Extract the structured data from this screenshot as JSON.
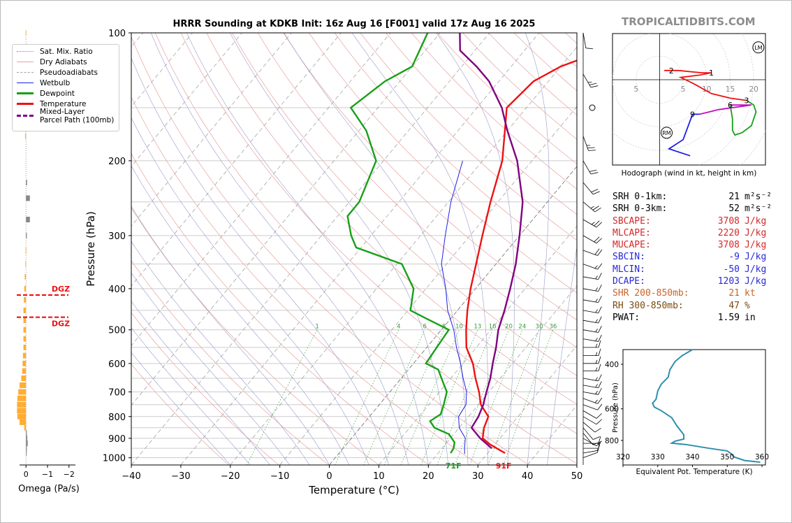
{
  "title": "HRRR Sounding at KDKB Init: 16z Aug 16 [F001] valid 17z Aug 16 2025",
  "brand": "TROPICALTIDBITS.COM",
  "chart_data": [
    {
      "type": "line",
      "name": "skew-t",
      "xlabel": "Temperature (°C)",
      "ylabel": "Pressure (hPa)",
      "xlim": [
        -40,
        50
      ],
      "ylim": [
        1040,
        100
      ],
      "y_scale": "log",
      "x_ticks": [
        -40,
        -30,
        -20,
        -10,
        0,
        10,
        20,
        30,
        40,
        50
      ],
      "y_ticks": [
        100,
        200,
        300,
        400,
        500,
        600,
        700,
        800,
        900,
        1000
      ],
      "grid": true,
      "legend": {
        "position": "left",
        "items": [
          {
            "label": "Sat. Mix. Ratio",
            "color": "#888888",
            "style": "dotted"
          },
          {
            "label": "Dry Adiabats",
            "color": "#e8a0a0",
            "style": "solid"
          },
          {
            "label": "Pseudoadiabats",
            "color": "#a0a0a0",
            "style": "dashed"
          },
          {
            "label": "Wetbulb",
            "color": "#1f1fe6",
            "style": "solid"
          },
          {
            "label": "Dewpoint",
            "color": "#18a018",
            "style": "solid"
          },
          {
            "label": "Temperature",
            "color": "#ee1111",
            "style": "solid"
          },
          {
            "label": "Mixed-Layer\nParcel Path (100mb)",
            "color": "#800080",
            "style": "dashed"
          }
        ]
      },
      "mixing_ratio_labels": [
        "1",
        "4",
        "6",
        "8",
        "10",
        "13",
        "16",
        "20",
        "24",
        "30",
        "36"
      ],
      "surface_labels": {
        "dewpoint": "71F",
        "temperature": "91F"
      },
      "series": [
        {
          "name": "Temperature",
          "color": "#ee1111",
          "points": [
            [
              33.5,
              975
            ],
            [
              32,
              960
            ],
            [
              29,
              930
            ],
            [
              26.5,
              900
            ],
            [
              25,
              850
            ],
            [
              24,
              800
            ],
            [
              20.5,
              750
            ],
            [
              18,
              700
            ],
            [
              15,
              650
            ],
            [
              12,
              600
            ],
            [
              8,
              550
            ],
            [
              5,
              500
            ],
            [
              2,
              450
            ],
            [
              -1,
              400
            ],
            [
              -4,
              350
            ],
            [
              -7.5,
              300
            ],
            [
              -11.5,
              250
            ],
            [
              -16,
              200
            ],
            [
              -20.5,
              170
            ],
            [
              -24,
              150
            ],
            [
              -23,
              130
            ],
            [
              -20,
              120
            ],
            [
              -14,
              110
            ],
            [
              -9,
              100
            ]
          ]
        },
        {
          "name": "Dewpoint",
          "color": "#18a018",
          "points": [
            [
              22.5,
              975
            ],
            [
              22.3,
              950
            ],
            [
              21.5,
              920
            ],
            [
              19,
              880
            ],
            [
              15,
              850
            ],
            [
              13,
              820
            ],
            [
              14,
              790
            ],
            [
              13,
              750
            ],
            [
              11.5,
              700
            ],
            [
              9.5,
              670
            ],
            [
              6,
              620
            ],
            [
              2.5,
              600
            ],
            [
              2,
              550
            ],
            [
              1.5,
              500
            ],
            [
              -5,
              470
            ],
            [
              -9.5,
              450
            ],
            [
              -12.5,
              400
            ],
            [
              -19,
              350
            ],
            [
              -31,
              320
            ],
            [
              -34,
              300
            ],
            [
              -38,
              270
            ],
            [
              -38,
              250
            ],
            [
              -41.5,
              200
            ],
            [
              -48.5,
              170
            ],
            [
              -55.5,
              150
            ],
            [
              -53,
              130
            ],
            [
              -50,
              120
            ],
            [
              -52.5,
              100
            ]
          ]
        },
        {
          "name": "Wetbulb",
          "color": "#1f1fe6",
          "points": [
            [
              25.5,
              980
            ],
            [
              24.5,
              950
            ],
            [
              23,
              900
            ],
            [
              20,
              850
            ],
            [
              18,
              800
            ],
            [
              17.5,
              750
            ],
            [
              15.5,
              700
            ],
            [
              12.5,
              650
            ],
            [
              9.5,
              600
            ],
            [
              6,
              550
            ],
            [
              2.5,
              500
            ],
            [
              -2,
              450
            ],
            [
              -6,
              400
            ],
            [
              -11,
              350
            ],
            [
              -15,
              300
            ],
            [
              -19.5,
              250
            ],
            [
              -24,
              200
            ]
          ]
        },
        {
          "name": "Mixed-Layer Parcel Path (100mb)",
          "color": "#800080",
          "points": [
            [
              30,
              950
            ],
            [
              26,
              900
            ],
            [
              22.5,
              850
            ],
            [
              22,
              800
            ],
            [
              21,
              750
            ],
            [
              19.5,
              700
            ],
            [
              18,
              650
            ],
            [
              16,
              600
            ],
            [
              14,
              550
            ],
            [
              11.5,
              500
            ],
            [
              9.5,
              450
            ],
            [
              7,
              400
            ],
            [
              4,
              350
            ],
            [
              0,
              300
            ],
            [
              -5,
              250
            ],
            [
              -13,
              200
            ],
            [
              -20,
              170
            ],
            [
              -25,
              150
            ],
            [
              -32,
              130
            ],
            [
              -37,
              120
            ],
            [
              -43,
              110
            ],
            [
              -46,
              100
            ]
          ]
        }
      ]
    },
    {
      "type": "bar",
      "name": "omega",
      "xlabel": "Omega (Pa/s)",
      "x_ticks": [
        "0",
        "−1",
        "−2"
      ],
      "xlim": [
        0.3,
        -2.3
      ],
      "dgz_label": "DGZ",
      "dgz_pressures": [
        414,
        467
      ],
      "bars": [
        {
          "p": 100,
          "v": 0.02
        },
        {
          "p": 150,
          "v": 0.06
        },
        {
          "p": 175,
          "v": 0.04
        },
        {
          "p": 225,
          "v": -0.05
        },
        {
          "p": 245,
          "v": -0.18
        },
        {
          "p": 275,
          "v": -0.18
        },
        {
          "p": 300,
          "v": -0.04
        },
        {
          "p": 325,
          "v": 0.02
        },
        {
          "p": 350,
          "v": 0.03
        },
        {
          "p": 375,
          "v": 0.06
        },
        {
          "p": 400,
          "v": 0.08
        },
        {
          "p": 425,
          "v": 0.1
        },
        {
          "p": 450,
          "v": 0.12
        },
        {
          "p": 475,
          "v": 0.12
        },
        {
          "p": 500,
          "v": 0.12
        },
        {
          "p": 525,
          "v": 0.12
        },
        {
          "p": 550,
          "v": 0.12
        },
        {
          "p": 575,
          "v": 0.14
        },
        {
          "p": 600,
          "v": 0.16
        },
        {
          "p": 625,
          "v": 0.18
        },
        {
          "p": 650,
          "v": 0.22
        },
        {
          "p": 675,
          "v": 0.3
        },
        {
          "p": 700,
          "v": 0.36
        },
        {
          "p": 725,
          "v": 0.4
        },
        {
          "p": 750,
          "v": 0.42
        },
        {
          "p": 775,
          "v": 0.42
        },
        {
          "p": 800,
          "v": 0.4
        },
        {
          "p": 825,
          "v": 0.3
        },
        {
          "p": 850,
          "v": 0.08
        },
        {
          "p": 875,
          "v": -0.04
        },
        {
          "p": 900,
          "v": -0.06
        },
        {
          "p": 925,
          "v": -0.08
        },
        {
          "p": 950,
          "v": -0.04
        },
        {
          "p": 975,
          "v": -0.02
        }
      ]
    },
    {
      "type": "line",
      "name": "hodograph",
      "caption": "Hodograph (wind in kt, height in km)",
      "xlim": [
        -20,
        45
      ],
      "ylim": [
        -37,
        20
      ],
      "ring_labels": [
        "5",
        "5",
        "10",
        "15",
        "20"
      ],
      "markers": [
        {
          "label": "LM",
          "u": 42,
          "v": 14
        },
        {
          "label": "RM",
          "u": 3,
          "v": -23
        }
      ],
      "height_labels": [
        {
          "label": "2",
          "u": 5,
          "v": 4
        },
        {
          "label": "1",
          "u": 22,
          "v": 3
        },
        {
          "label": "3",
          "u": 37,
          "v": -9
        },
        {
          "label": "6",
          "u": 30,
          "v": -11
        },
        {
          "label": "9",
          "u": 14,
          "v": -15
        }
      ],
      "segments": [
        {
          "color": "#ee1111",
          "points": [
            [
              2,
              4
            ],
            [
              8,
              4
            ],
            [
              18,
              3
            ],
            [
              22,
              3
            ],
            [
              17,
              2
            ],
            [
              9,
              1
            ],
            [
              15,
              -2
            ],
            [
              22,
              -6
            ],
            [
              30,
              -8
            ],
            [
              37,
              -9
            ]
          ]
        },
        {
          "color": "#18a018",
          "points": [
            [
              37,
              -9
            ],
            [
              40,
              -11
            ],
            [
              41,
              -14
            ],
            [
              39,
              -20
            ],
            [
              35,
              -23
            ],
            [
              32,
              -24
            ],
            [
              31,
              -22
            ],
            [
              31,
              -17
            ],
            [
              30,
              -11
            ]
          ]
        },
        {
          "color": "#c010c0",
          "points": [
            [
              30,
              -11
            ],
            [
              39,
              -11
            ],
            [
              25,
              -13
            ],
            [
              17,
              -15
            ]
          ]
        },
        {
          "color": "#1f1fe6",
          "points": [
            [
              17,
              -15
            ],
            [
              14,
              -15
            ],
            [
              10,
              -26
            ],
            [
              4,
              -30
            ],
            [
              13,
              -33
            ]
          ]
        }
      ]
    },
    {
      "type": "line",
      "name": "theta-e",
      "xlabel": "Equivalent Pot. Temperature (K)",
      "ylabel": "Pressure (hPa)",
      "xlim": [
        320,
        361
      ],
      "ylim": [
        1000,
        350
      ],
      "x_ticks": [
        "320",
        "330",
        "340",
        "350",
        "360"
      ],
      "y_ticks": [
        "400",
        "600",
        "800"
      ],
      "series": [
        {
          "name": "Theta-E",
          "color": "#2f8fae",
          "points": [
            [
              340,
              350
            ],
            [
              337,
              370
            ],
            [
              335,
              390
            ],
            [
              333.5,
              420
            ],
            [
              333,
              450
            ],
            [
              331,
              480
            ],
            [
              330,
              510
            ],
            [
              329.5,
              550
            ],
            [
              328.5,
              570
            ],
            [
              329,
              590
            ],
            [
              331,
              610
            ],
            [
              334,
              650
            ],
            [
              335.5,
              700
            ],
            [
              337.5,
              760
            ],
            [
              337.5,
              790
            ],
            [
              335,
              805
            ],
            [
              334,
              820
            ],
            [
              338,
              830
            ],
            [
              345,
              860
            ],
            [
              350,
              880
            ],
            [
              351,
              900
            ],
            [
              352,
              930
            ],
            [
              355,
              960
            ],
            [
              359.5,
              975
            ]
          ]
        }
      ]
    }
  ],
  "params": [
    {
      "label": "SRH 0-1km:",
      "value": "21",
      "unit": "m²s⁻²",
      "color": "#000000"
    },
    {
      "label": "SRH 0-3km:",
      "value": "52",
      "unit": "m²s⁻²",
      "color": "#000000"
    },
    {
      "label": "SBCAPE:",
      "value": "3708",
      "unit": "J/kg",
      "color": "#d62728"
    },
    {
      "label": "MLCAPE:",
      "value": "2220",
      "unit": "J/kg",
      "color": "#d62728"
    },
    {
      "label": "MUCAPE:",
      "value": "3708",
      "unit": "J/kg",
      "color": "#d62728"
    },
    {
      "label": "SBCIN:",
      "value": "-9",
      "unit": "J/kg",
      "color": "#2828d6"
    },
    {
      "label": "MLCIN:",
      "value": "-50",
      "unit": "J/kg",
      "color": "#2828d6"
    },
    {
      "label": "DCAPE:",
      "value": "1203",
      "unit": "J/kg",
      "color": "#2828d6"
    },
    {
      "label": "SHR 200-850mb:",
      "value": "21",
      "unit": "kt",
      "color": "#c8642a"
    },
    {
      "label": "RH 300-850mb:",
      "value": "47",
      "unit": "%",
      "color": "#7a4a10"
    },
    {
      "label": "PWAT:",
      "value": "1.59",
      "unit": "in",
      "color": "#000000"
    }
  ],
  "winds": [
    {
      "p": 100,
      "spd": 10,
      "dir": 350
    },
    {
      "p": 125,
      "spd": 25,
      "dir": 330
    },
    {
      "p": 150,
      "spd": 0,
      "dir": 0
    },
    {
      "p": 175,
      "spd": 25,
      "dir": 340
    },
    {
      "p": 200,
      "spd": 20,
      "dir": 330
    },
    {
      "p": 225,
      "spd": 20,
      "dir": 320
    },
    {
      "p": 250,
      "spd": 25,
      "dir": 310
    },
    {
      "p": 275,
      "spd": 25,
      "dir": 300
    },
    {
      "p": 300,
      "spd": 20,
      "dir": 300
    },
    {
      "p": 325,
      "spd": 20,
      "dir": 290
    },
    {
      "p": 350,
      "spd": 15,
      "dir": 290
    },
    {
      "p": 375,
      "spd": 15,
      "dir": 280
    },
    {
      "p": 400,
      "spd": 15,
      "dir": 280
    },
    {
      "p": 425,
      "spd": 15,
      "dir": 280
    },
    {
      "p": 450,
      "spd": 15,
      "dir": 280
    },
    {
      "p": 475,
      "spd": 15,
      "dir": 280
    },
    {
      "p": 500,
      "spd": 15,
      "dir": 280
    },
    {
      "p": 525,
      "spd": 15,
      "dir": 280
    },
    {
      "p": 550,
      "spd": 15,
      "dir": 270
    },
    {
      "p": 575,
      "spd": 15,
      "dir": 270
    },
    {
      "p": 600,
      "spd": 15,
      "dir": 270
    },
    {
      "p": 625,
      "spd": 15,
      "dir": 270
    },
    {
      "p": 650,
      "spd": 15,
      "dir": 280
    },
    {
      "p": 675,
      "spd": 15,
      "dir": 280
    },
    {
      "p": 700,
      "spd": 15,
      "dir": 280
    },
    {
      "p": 725,
      "spd": 15,
      "dir": 290
    },
    {
      "p": 750,
      "spd": 10,
      "dir": 290
    },
    {
      "p": 775,
      "spd": 10,
      "dir": 300
    },
    {
      "p": 800,
      "spd": 10,
      "dir": 300
    },
    {
      "p": 825,
      "spd": 10,
      "dir": 310
    },
    {
      "p": 850,
      "spd": 10,
      "dir": 320
    },
    {
      "p": 875,
      "spd": 10,
      "dir": 320
    },
    {
      "p": 900,
      "spd": 10,
      "dir": 300
    },
    {
      "p": 925,
      "spd": 10,
      "dir": 270
    },
    {
      "p": 950,
      "spd": 10,
      "dir": 270
    },
    {
      "p": 975,
      "spd": 10,
      "dir": 260
    },
    {
      "p": 1000,
      "spd": 5,
      "dir": 250
    }
  ]
}
